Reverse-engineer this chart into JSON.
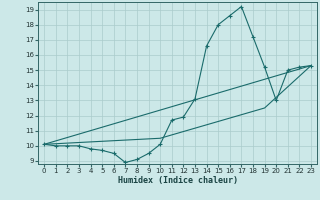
{
  "title": "",
  "xlabel": "Humidex (Indice chaleur)",
  "background_color": "#cce8e8",
  "grid_color": "#aacccc",
  "line_color": "#1a6b6b",
  "xlim": [
    -0.5,
    23.5
  ],
  "ylim": [
    8.8,
    19.5
  ],
  "xticks": [
    0,
    1,
    2,
    3,
    4,
    5,
    6,
    7,
    8,
    9,
    10,
    11,
    12,
    13,
    14,
    15,
    16,
    17,
    18,
    19,
    20,
    21,
    22,
    23
  ],
  "yticks": [
    9,
    10,
    11,
    12,
    13,
    14,
    15,
    16,
    17,
    18,
    19
  ],
  "line1_x": [
    0,
    1,
    2,
    3,
    4,
    5,
    6,
    7,
    8,
    9,
    10,
    11,
    12,
    13,
    14,
    15,
    16,
    17,
    18,
    19,
    20,
    21,
    22,
    23
  ],
  "line1_y": [
    10.1,
    10.0,
    10.0,
    10.0,
    9.8,
    9.7,
    9.5,
    8.9,
    9.1,
    9.5,
    10.1,
    11.7,
    11.9,
    13.1,
    16.6,
    18.0,
    18.6,
    19.2,
    17.2,
    15.2,
    13.0,
    15.0,
    15.2,
    15.3
  ],
  "line2_x": [
    0,
    23
  ],
  "line2_y": [
    10.1,
    15.3
  ],
  "line3_x": [
    0,
    10,
    19,
    23
  ],
  "line3_y": [
    10.1,
    10.5,
    12.5,
    15.3
  ]
}
